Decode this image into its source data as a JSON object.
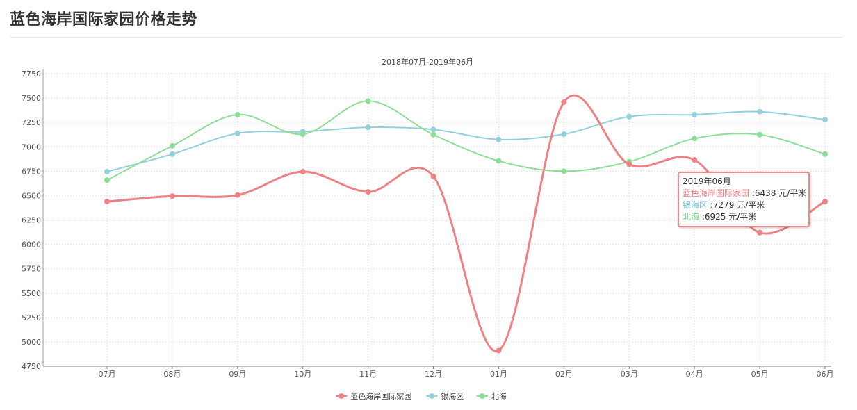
{
  "page": {
    "title": "蓝色海岸国际家园价格走势"
  },
  "chart_data": {
    "type": "line",
    "subtitle": "2018年07月-2019年06月",
    "categories": [
      "07月",
      "08月",
      "09月",
      "10月",
      "11月",
      "12月",
      "01月",
      "02月",
      "03月",
      "04月",
      "05月",
      "06月"
    ],
    "ylim": [
      4750,
      7750
    ],
    "yticks": [
      4750,
      5000,
      5250,
      5500,
      5750,
      6000,
      6250,
      6500,
      6750,
      7000,
      7250,
      7500,
      7750
    ],
    "grid": true,
    "legend_position": "bottom-center",
    "series": [
      {
        "name": "蓝色海岸国际家园",
        "color": "#ee8184",
        "values": [
          6438,
          6495,
          6505,
          6745,
          6538,
          6697,
          4910,
          7458,
          6820,
          6865,
          6120,
          6438
        ]
      },
      {
        "name": "银海区",
        "color": "#92d0dc",
        "values": [
          6745,
          6925,
          7138,
          7155,
          7200,
          7178,
          7075,
          7130,
          7310,
          7330,
          7360,
          7279
        ]
      },
      {
        "name": "北海",
        "color": "#8cde97",
        "values": [
          6658,
          7010,
          7330,
          7130,
          7470,
          7125,
          6855,
          6750,
          6848,
          7085,
          7125,
          6925
        ]
      }
    ]
  },
  "tooltip": {
    "title": "2019年06月",
    "unit": "元/平米",
    "rows": [
      {
        "name": "蓝色海岸国际家园",
        "value": "6438",
        "color": "#ee8184"
      },
      {
        "name": "银海区",
        "value": "7279",
        "color": "#92d0dc"
      },
      {
        "name": "北海",
        "value": "6925",
        "color": "#8cde97"
      }
    ]
  }
}
